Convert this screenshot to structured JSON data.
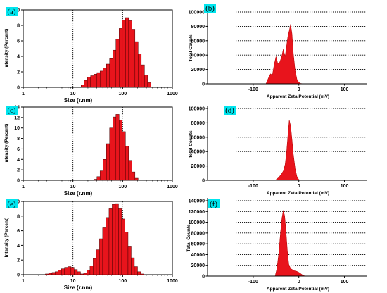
{
  "chart_data": [
    {
      "id": "a",
      "type": "bar",
      "panel_label": "(a)",
      "log_x": true,
      "xlabel": "Size (r.nm)",
      "ylabel": "Intensity (Percent)",
      "xlim": [
        1,
        1000
      ],
      "ylim": [
        0,
        10
      ],
      "xticks": [
        {
          "v": 1,
          "t": "1"
        },
        {
          "v": 10,
          "t": "10"
        },
        {
          "v": 100,
          "t": "100"
        },
        {
          "v": 1000,
          "t": "1000"
        }
      ],
      "yticks": [
        {
          "v": 0,
          "t": "0"
        },
        {
          "v": 2,
          "t": "2"
        },
        {
          "v": 4,
          "t": "4"
        },
        {
          "v": 6,
          "t": "6"
        },
        {
          "v": 8,
          "t": "8"
        },
        {
          "v": 10,
          "t": "10"
        }
      ],
      "vlines": [
        10,
        100
      ],
      "x": [
        15.7,
        18.2,
        21.0,
        24.4,
        28.2,
        32.7,
        37.8,
        43.8,
        50.7,
        58.8,
        68.1,
        78.8,
        91.3,
        105.7,
        122.4,
        141.8,
        164.2,
        190.1,
        220.2,
        255.0,
        295.3,
        342.0
      ],
      "values": [
        0.3,
        0.9,
        1.3,
        1.5,
        1.7,
        1.9,
        2.1,
        2.5,
        3.0,
        3.7,
        4.8,
        6.2,
        7.6,
        8.7,
        9.0,
        8.6,
        7.5,
        5.9,
        4.3,
        2.9,
        1.6,
        0.6
      ]
    },
    {
      "id": "b",
      "type": "area",
      "panel_label": "(b)",
      "xlabel": "Apparent Zeta Potential (mV)",
      "ylabel": "Total Counts",
      "xlim": [
        -200,
        150
      ],
      "ylim": [
        0,
        100000
      ],
      "xticks": [
        {
          "v": -100,
          "t": "-100"
        },
        {
          "v": 0,
          "t": "0"
        },
        {
          "v": 100,
          "t": "100"
        }
      ],
      "yticks": [
        {
          "v": 0,
          "t": "0"
        },
        {
          "v": 20000,
          "t": "20000"
        },
        {
          "v": 40000,
          "t": "40000"
        },
        {
          "v": 60000,
          "t": "60000"
        },
        {
          "v": 80000,
          "t": "80000"
        },
        {
          "v": 100000,
          "t": "100000"
        }
      ],
      "x": [
        -72,
        -66,
        -62,
        -58,
        -54,
        -50,
        -46,
        -42,
        -38,
        -34,
        -30,
        -27,
        -24,
        -21,
        -18,
        -15,
        -12,
        -8,
        -4,
        0,
        4,
        10
      ],
      "y": [
        0,
        9000,
        14000,
        12000,
        27000,
        38000,
        28000,
        30000,
        37000,
        48000,
        38000,
        52000,
        66000,
        74000,
        83000,
        70000,
        42000,
        18000,
        6000,
        2000,
        500,
        0
      ]
    },
    {
      "id": "c",
      "type": "bar",
      "panel_label": "(c)",
      "log_x": true,
      "xlabel": "Size (r.nm)",
      "ylabel": "Intensity (Percent)",
      "xlim": [
        1,
        1000
      ],
      "ylim": [
        0,
        14
      ],
      "xticks": [
        {
          "v": 1,
          "t": "1"
        },
        {
          "v": 10,
          "t": "10"
        },
        {
          "v": 100,
          "t": "100"
        },
        {
          "v": 1000,
          "t": "1000"
        }
      ],
      "yticks": [
        {
          "v": 0,
          "t": "0"
        },
        {
          "v": 2,
          "t": "2"
        },
        {
          "v": 4,
          "t": "4"
        },
        {
          "v": 6,
          "t": "6"
        },
        {
          "v": 8,
          "t": "8"
        },
        {
          "v": 10,
          "t": "10"
        },
        {
          "v": 12,
          "t": "12"
        },
        {
          "v": 14,
          "t": "14"
        }
      ],
      "vlines": [
        10,
        100
      ],
      "x": [
        28.2,
        32.7,
        37.8,
        43.8,
        50.7,
        58.8,
        68.1,
        78.8,
        91.3,
        105.7,
        122.4,
        141.8,
        164.2,
        190.1
      ],
      "values": [
        0.2,
        0.7,
        1.8,
        4.0,
        7.0,
        10.0,
        12.1,
        12.6,
        11.5,
        9.3,
        6.5,
        3.8,
        1.6,
        0.4
      ]
    },
    {
      "id": "d",
      "type": "area",
      "panel_label": "(d)",
      "xlabel": "Apparent Zeta Potential (mV)",
      "ylabel": "Total Counts",
      "xlim": [
        -200,
        150
      ],
      "ylim": [
        0,
        100000
      ],
      "xticks": [
        {
          "v": -100,
          "t": "-100"
        },
        {
          "v": 0,
          "t": "0"
        },
        {
          "v": 100,
          "t": "100"
        }
      ],
      "yticks": [
        {
          "v": 0,
          "t": "0"
        },
        {
          "v": 20000,
          "t": "20000"
        },
        {
          "v": 40000,
          "t": "40000"
        },
        {
          "v": 60000,
          "t": "60000"
        },
        {
          "v": 80000,
          "t": "80000"
        },
        {
          "v": 100000,
          "t": "100000"
        }
      ],
      "x": [
        -52,
        -44,
        -38,
        -34,
        -30,
        -27,
        -24,
        -21,
        -18,
        -15,
        -12,
        -8,
        -4,
        0,
        6
      ],
      "y": [
        0,
        4000,
        9000,
        13000,
        22000,
        38000,
        62000,
        84000,
        76000,
        57000,
        36000,
        16000,
        5000,
        1000,
        0
      ]
    },
    {
      "id": "e",
      "type": "bar",
      "panel_label": "(e)",
      "log_x": true,
      "xlabel": "Size (r.nm)",
      "ylabel": "Intensity (Percent)",
      "xlim": [
        1,
        1000
      ],
      "ylim": [
        0,
        10
      ],
      "xticks": [
        {
          "v": 1,
          "t": "1"
        },
        {
          "v": 10,
          "t": "10"
        },
        {
          "v": 100,
          "t": "100"
        },
        {
          "v": 1000,
          "t": "1000"
        }
      ],
      "yticks": [
        {
          "v": 0,
          "t": "0"
        },
        {
          "v": 2,
          "t": "2"
        },
        {
          "v": 4,
          "t": "4"
        },
        {
          "v": 6,
          "t": "6"
        },
        {
          "v": 8,
          "t": "8"
        },
        {
          "v": 10,
          "t": "10"
        }
      ],
      "vlines": [
        10,
        100
      ],
      "x": [
        3.0,
        3.5,
        4.1,
        4.7,
        5.4,
        6.3,
        7.3,
        8.5,
        9.8,
        11.4,
        13.2,
        15.2,
        17.7,
        20.5,
        23.7,
        27.4,
        31.8,
        36.8,
        42.6,
        49.4,
        57.2,
        66.2,
        76.7,
        88.8,
        102.8,
        119.1,
        137.9,
        159.7,
        185.0,
        214.2,
        248.1
      ],
      "values": [
        0.1,
        0.2,
        0.3,
        0.4,
        0.6,
        0.8,
        1.0,
        1.1,
        1.0,
        0.7,
        0.4,
        0.1,
        0.2,
        0.6,
        1.2,
        2.2,
        3.4,
        4.9,
        6.4,
        7.8,
        9.0,
        9.6,
        9.7,
        9.0,
        7.6,
        5.8,
        3.9,
        2.3,
        1.1,
        0.4,
        0.1
      ]
    },
    {
      "id": "f",
      "type": "area",
      "panel_label": "(f)",
      "xlabel": "Apparent Zeta Potential (mV)",
      "ylabel": "Total Counts",
      "xlim": [
        -200,
        150
      ],
      "ylim": [
        0,
        140000
      ],
      "xticks": [
        {
          "v": -100,
          "t": "-100"
        },
        {
          "v": 0,
          "t": "0"
        },
        {
          "v": 100,
          "t": "100"
        }
      ],
      "yticks": [
        {
          "v": 0,
          "t": "0"
        },
        {
          "v": 20000,
          "t": "20000"
        },
        {
          "v": 40000,
          "t": "40000"
        },
        {
          "v": 60000,
          "t": "60000"
        },
        {
          "v": 80000,
          "t": "80000"
        },
        {
          "v": 100000,
          "t": "100000"
        },
        {
          "v": 120000,
          "t": "120000"
        },
        {
          "v": 140000,
          "t": "140000"
        }
      ],
      "x": [
        -52,
        -48,
        -44,
        -40,
        -37,
        -34,
        -31,
        -28,
        -25,
        -22,
        -18,
        -14,
        -10,
        -5,
        0,
        5,
        10,
        15
      ],
      "y": [
        0,
        14000,
        42000,
        82000,
        108000,
        122000,
        112000,
        82000,
        46000,
        22000,
        14000,
        12000,
        10000,
        9000,
        7000,
        4000,
        1000,
        0
      ]
    }
  ],
  "colors": {
    "bar_fill": "#e8141c",
    "bar_edge": "#4a0000",
    "area_fill": "#e8141c",
    "label_bg": "#00e5ee",
    "axis": "#000000",
    "grid": "#000000"
  }
}
